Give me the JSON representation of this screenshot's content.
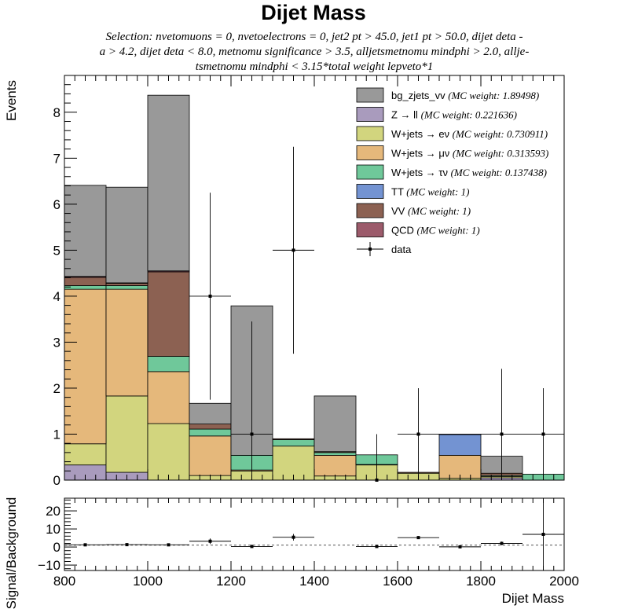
{
  "chart_data": {
    "type": "bar",
    "title": "Dijet Mass",
    "subtitle_lines": [
      "Selection: nvetomuons = 0, nvetoelectrons = 0, jet2 pt > 45.0, jet1 pt > 50.0, dijet deta -",
      "a > 4.2, dijet deta < 8.0, metnomu significance > 3.5, alljetsmetnomu mindphi > 2.0, allje-",
      "tsmetnomu mindphi < 3.15*total weight lepveto*1"
    ],
    "xlabel": "Dijet Mass",
    "ylabel": "Events",
    "ratio_ylabel": "Signal/Background",
    "xlim": [
      800,
      2000
    ],
    "ylim": [
      0,
      8.8
    ],
    "ratio_ylim": [
      -13,
      27
    ],
    "x_ticks": [
      "800",
      "1000",
      "1200",
      "1400",
      "1600",
      "1800",
      "2000"
    ],
    "y_ticks": [
      "0",
      "1",
      "2",
      "3",
      "4",
      "5",
      "6",
      "7",
      "8"
    ],
    "ratio_y_ticks": [
      "−10",
      "0",
      "10",
      "20"
    ],
    "bin_edges": [
      800,
      900,
      1000,
      1100,
      1200,
      1300,
      1400,
      1500,
      1600,
      1700,
      1800,
      1900,
      2000
    ],
    "stack_order": [
      "Z → ll",
      "W+jets → eν",
      "W+jets → μν",
      "W+jets → τν",
      "TT",
      "VV",
      "QCD",
      "bg_zjets_vv"
    ],
    "stack": [
      {
        "name": "Z → ll",
        "color": "#a99bbd",
        "values": [
          0.33,
          0.17,
          0,
          0,
          0,
          0,
          0,
          0,
          0,
          0,
          0.05,
          0
        ]
      },
      {
        "name": "W+jets → eν",
        "color": "#d2d57e",
        "values": [
          0.46,
          1.66,
          1.23,
          0.1,
          0.2,
          0.74,
          0.09,
          0.33,
          0.15,
          0.04,
          0.03,
          0
        ]
      },
      {
        "name": "W+jets → μν",
        "color": "#e5b87b",
        "values": [
          3.36,
          2.32,
          1.13,
          0.86,
          0.02,
          0,
          0.45,
          0.01,
          0,
          0.5,
          0,
          0
        ]
      },
      {
        "name": "W+jets → τν",
        "color": "#6fc89a",
        "values": [
          0.08,
          0.08,
          0.33,
          0.15,
          0.32,
          0.14,
          0.06,
          0.21,
          0,
          0,
          0.02,
          0.13
        ]
      },
      {
        "name": "TT",
        "color": "#7393d2",
        "values": [
          0,
          0,
          0,
          0,
          0,
          0,
          0,
          0,
          0,
          0.45,
          0,
          0
        ]
      },
      {
        "name": "VV",
        "color": "#8c6152",
        "values": [
          0.18,
          0.05,
          1.84,
          0.11,
          0,
          0.02,
          0.02,
          0,
          0.02,
          0.01,
          0.05,
          0
        ]
      },
      {
        "name": "QCD",
        "color": "#9c5b6b",
        "values": [
          0.02,
          0.01,
          0.02,
          0,
          0,
          0,
          0,
          0,
          0,
          0,
          0,
          0
        ]
      },
      {
        "name": "bg_zjets_vv",
        "color": "#999999",
        "values": [
          1.98,
          2.08,
          3.82,
          0.45,
          3.25,
          0,
          1.21,
          0,
          0,
          0,
          0.37,
          0
        ]
      }
    ],
    "data_points": {
      "name": "data",
      "x": [
        1150,
        1250,
        1350,
        1550,
        1650,
        1850,
        1950
      ],
      "y": [
        4,
        1,
        5,
        0,
        1,
        1,
        1
      ],
      "yerr_low": [
        2.25,
        1,
        2.25,
        0,
        1,
        1,
        1
      ],
      "yerr_high": [
        2.25,
        2.45,
        2.25,
        1,
        1,
        1.42,
        1
      ]
    },
    "ratio_points": {
      "x": [
        850,
        950,
        1050,
        1150,
        1250,
        1350,
        1550,
        1650,
        1750,
        1850,
        1950
      ],
      "y": [
        1.2,
        1.3,
        1.2,
        3.2,
        0.3,
        5.4,
        0.3,
        5.2,
        0.1,
        2.0,
        7.0
      ],
      "yerr_low": [
        0.5,
        0.5,
        0.5,
        1.5,
        0.5,
        1.8,
        0.5,
        0.8,
        0.3,
        1.0,
        20.0
      ],
      "yerr_high": [
        0.5,
        0.5,
        0.5,
        1.5,
        0.5,
        1.8,
        0.5,
        0.8,
        0.3,
        1.0,
        20.0
      ]
    },
    "ratio_reference": 1,
    "legend": [
      {
        "label": "bg_zjets_vv",
        "weight": "(MC weight: 1.89498)",
        "color": "#999999",
        "kind": "box"
      },
      {
        "label": "Z → ll",
        "weight": "(MC weight: 0.221636)",
        "color": "#a99bbd",
        "kind": "box"
      },
      {
        "label": "W+jets → eν",
        "weight": "(MC weight: 0.730911)",
        "color": "#d2d57e",
        "kind": "box"
      },
      {
        "label": "W+jets → μν",
        "weight": "(MC weight: 0.313593)",
        "color": "#e5b87b",
        "kind": "box"
      },
      {
        "label": "W+jets → τν",
        "weight": "(MC weight: 0.137438)",
        "color": "#6fc89a",
        "kind": "box"
      },
      {
        "label": "TT",
        "weight": "(MC weight: 1)",
        "color": "#7393d2",
        "kind": "box"
      },
      {
        "label": "VV",
        "weight": "(MC weight: 1)",
        "color": "#8c6152",
        "kind": "box"
      },
      {
        "label": "QCD",
        "weight": "(MC weight: 1)",
        "color": "#9c5b6b",
        "kind": "box"
      },
      {
        "label": "data",
        "weight": "",
        "color": "#000000",
        "kind": "marker"
      }
    ],
    "legend_position": "top-right",
    "grid": false
  }
}
